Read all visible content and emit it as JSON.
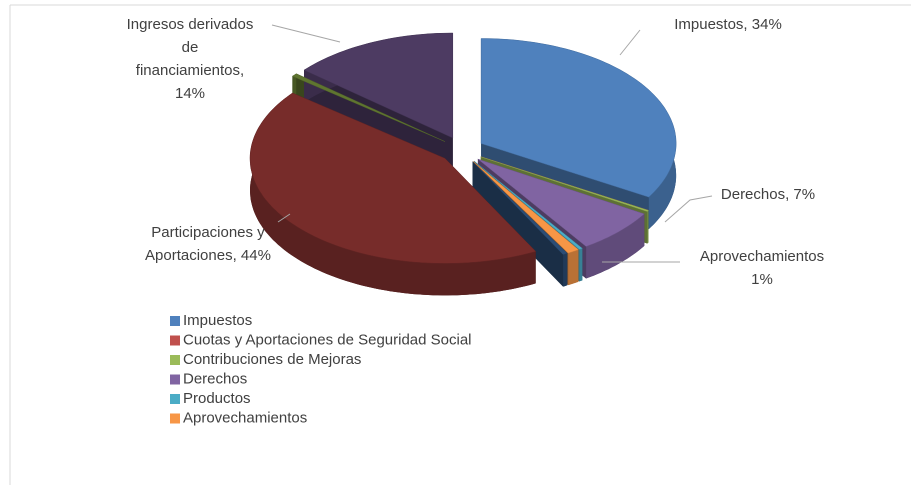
{
  "chart_data": {
    "type": "pie",
    "categories": [
      "Impuestos",
      "Cuotas y Aportaciones de Seguridad Social",
      "Contribuciones de Mejoras",
      "Derechos",
      "Productos",
      "Aprovechamientos",
      null,
      "Participaciones y Aportaciones",
      null,
      "Ingresos derivados de financiamientos"
    ],
    "values": [
      34,
      0,
      0.2,
      7,
      0.3,
      1,
      0.4,
      44,
      0.5,
      14
    ],
    "value_labels": [
      "Impuestos, 34%",
      null,
      null,
      "Derechos, 7%",
      null,
      "Aprovechamientos 1%",
      null,
      "Participaciones y Aportaciones, 44%",
      null,
      "Ingresos derivados de financiamientos, 14%"
    ],
    "colors": [
      "#4f81bd",
      "#c0504d",
      "#9bbb59",
      "#8064a2",
      "#4bacc6",
      "#f79646",
      "#2c4d75",
      "#772c2a",
      "#5f7530",
      "#4d3b62"
    ],
    "legend": "bottom"
  }
}
